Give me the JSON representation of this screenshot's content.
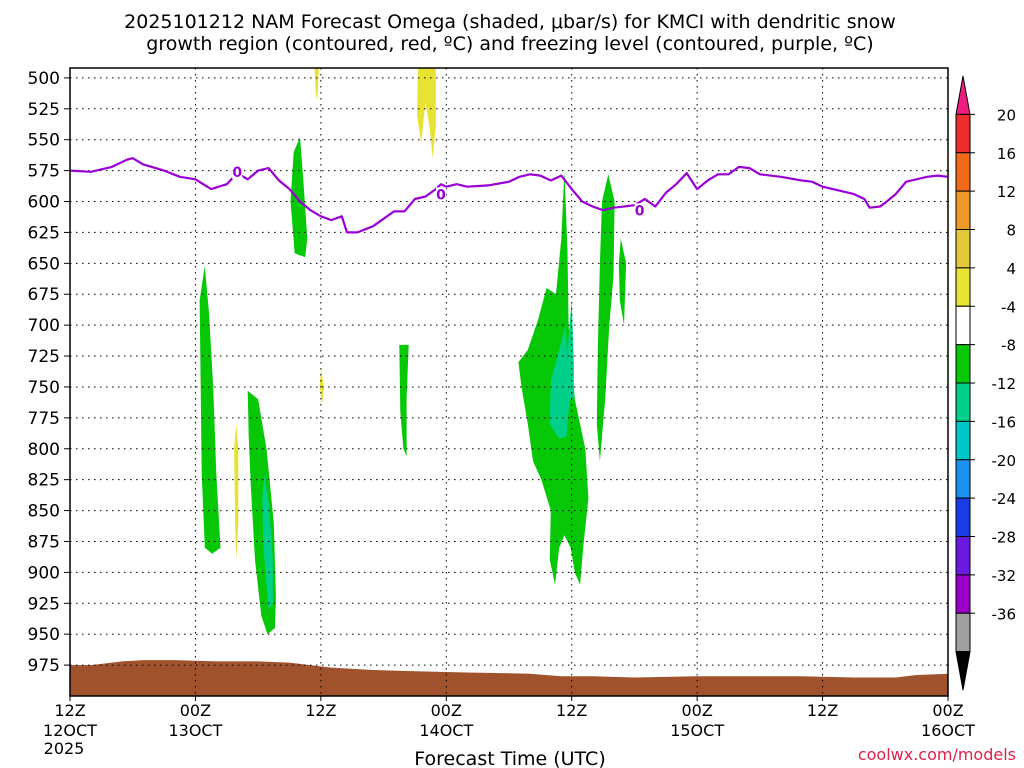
{
  "chart_data": {
    "type": "heatmap",
    "title_line1": "2025101212 NAM Forecast Omega (shaded, μbar/s) for KMCI with dendritic snow",
    "title_line2": "growth region (contoured, red, ºC) and freezing level (contoured, purple, ºC)",
    "xlabel": "Forecast Time (UTC)",
    "credit": "coolwx.com/models",
    "y_axis": {
      "range_hpa": [
        1000,
        492
      ],
      "ticks": [
        500,
        525,
        550,
        575,
        600,
        625,
        650,
        675,
        700,
        725,
        750,
        775,
        800,
        825,
        850,
        875,
        900,
        925,
        950,
        975
      ]
    },
    "x_axis": {
      "range_hours": [
        0,
        84
      ],
      "ticks": [
        {
          "hour": 0,
          "top": "12Z",
          "bottom": "12OCT",
          "extra": "2025"
        },
        {
          "hour": 12,
          "top": "00Z",
          "bottom": "13OCT",
          "extra": ""
        },
        {
          "hour": 24,
          "top": "12Z",
          "bottom": "",
          "extra": ""
        },
        {
          "hour": 36,
          "top": "00Z",
          "bottom": "14OCT",
          "extra": ""
        },
        {
          "hour": 48,
          "top": "12Z",
          "bottom": "",
          "extra": ""
        },
        {
          "hour": 60,
          "top": "00Z",
          "bottom": "15OCT",
          "extra": ""
        },
        {
          "hour": 72,
          "top": "12Z",
          "bottom": "",
          "extra": ""
        },
        {
          "hour": 84,
          "top": "00Z",
          "bottom": "16OCT",
          "extra": ""
        }
      ]
    },
    "grid": true,
    "colorbar": {
      "labels": [
        20,
        16,
        12,
        8,
        4,
        -4,
        -8,
        -12,
        -16,
        -20,
        -24,
        -28,
        -32,
        -36
      ],
      "colors": [
        "#ee1c83",
        "#ee2c2c",
        "#f06a1a",
        "#eb9a28",
        "#e3c83a",
        "#e8e232",
        "#ffffff",
        "#06c806",
        "#00d08a",
        "#00c8c8",
        "#1a90f0",
        "#1a3ce6",
        "#6a1ae0",
        "#9a00c8",
        "#a0a0a0",
        "#000000"
      ]
    },
    "freezing_level": {
      "label": "0",
      "color": "#9a00d6",
      "points": [
        [
          0,
          575
        ],
        [
          2,
          576
        ],
        [
          4,
          572
        ],
        [
          5.5,
          566
        ],
        [
          6,
          565
        ],
        [
          7,
          570
        ],
        [
          9,
          575
        ],
        [
          10.5,
          580
        ],
        [
          12,
          582
        ],
        [
          13.5,
          590
        ],
        [
          15,
          586
        ],
        [
          16,
          577
        ],
        [
          17,
          582
        ],
        [
          18,
          575
        ],
        [
          19,
          573
        ],
        [
          20,
          583
        ],
        [
          21,
          590
        ],
        [
          22,
          600
        ],
        [
          23,
          607
        ],
        [
          24,
          612
        ],
        [
          25,
          615
        ],
        [
          26,
          612
        ],
        [
          26.5,
          625
        ],
        [
          27.5,
          625
        ],
        [
          29,
          620
        ],
        [
          31,
          608
        ],
        [
          32,
          608
        ],
        [
          33,
          598
        ],
        [
          34,
          596
        ],
        [
          35,
          590
        ],
        [
          35.5,
          586
        ],
        [
          36,
          588
        ],
        [
          37,
          586
        ],
        [
          38,
          588
        ],
        [
          40,
          587
        ],
        [
          42,
          584
        ],
        [
          43,
          580
        ],
        [
          44,
          578
        ],
        [
          45,
          579
        ],
        [
          46,
          583
        ],
        [
          47,
          579
        ],
        [
          48,
          590
        ],
        [
          49,
          600
        ],
        [
          50,
          604
        ],
        [
          51,
          607
        ],
        [
          52,
          605
        ],
        [
          53,
          604
        ],
        [
          54,
          603
        ],
        [
          55,
          598
        ],
        [
          56,
          604
        ],
        [
          57,
          593
        ],
        [
          58,
          586
        ],
        [
          59,
          577
        ],
        [
          60,
          590
        ],
        [
          61,
          583
        ],
        [
          62,
          578
        ],
        [
          63,
          578
        ],
        [
          64,
          572
        ],
        [
          65,
          573
        ],
        [
          66,
          578
        ],
        [
          68,
          580
        ],
        [
          70,
          583
        ],
        [
          71,
          584
        ],
        [
          72,
          588
        ],
        [
          74,
          592
        ],
        [
          75,
          594
        ],
        [
          76,
          598
        ],
        [
          76.5,
          605
        ],
        [
          77.5,
          604
        ],
        [
          78,
          601
        ],
        [
          79,
          594
        ],
        [
          80,
          584
        ],
        [
          81,
          582
        ],
        [
          82,
          580
        ],
        [
          83,
          579
        ],
        [
          84,
          580
        ]
      ],
      "contour_labels": [
        [
          16,
          577
        ],
        [
          35.5,
          595
        ],
        [
          54.5,
          608
        ]
      ]
    },
    "omega_regions": [
      {
        "level": "-4 to -8",
        "color": "#06c806",
        "points": [
          [
            12.9,
            652
          ],
          [
            13.3,
            690
          ],
          [
            13.7,
            750
          ],
          [
            14.0,
            820
          ],
          [
            14.4,
            880
          ],
          [
            13.6,
            885
          ],
          [
            12.9,
            880
          ],
          [
            12.6,
            820
          ],
          [
            12.5,
            750
          ],
          [
            12.4,
            680
          ]
        ]
      },
      {
        "level": "-4 to -8",
        "color": "#06c806",
        "points": [
          [
            17.0,
            753
          ],
          [
            18.0,
            760
          ],
          [
            18.8,
            800
          ],
          [
            19.5,
            860
          ],
          [
            19.7,
            920
          ],
          [
            19.6,
            945
          ],
          [
            18.9,
            950
          ],
          [
            18.3,
            935
          ],
          [
            17.7,
            890
          ],
          [
            17.3,
            830
          ],
          [
            17.1,
            790
          ]
        ]
      },
      {
        "level": "-8 to -12",
        "color": "#00d08a",
        "points": [
          [
            18.6,
            820
          ],
          [
            19.1,
            850
          ],
          [
            19.4,
            890
          ],
          [
            19.4,
            925
          ],
          [
            19.0,
            930
          ],
          [
            18.5,
            880
          ],
          [
            18.4,
            840
          ]
        ]
      },
      {
        "level": "-4 to -8",
        "color": "#06c806",
        "points": [
          [
            22.0,
            548
          ],
          [
            22.3,
            580
          ],
          [
            22.7,
            630
          ],
          [
            22.5,
            645
          ],
          [
            21.5,
            642
          ],
          [
            21.1,
            600
          ],
          [
            21.4,
            560
          ]
        ]
      },
      {
        "level": "-4 to -8",
        "color": "#06c806",
        "points": [
          [
            31.5,
            716
          ],
          [
            32.4,
            716
          ],
          [
            32.2,
            760
          ],
          [
            32.2,
            806
          ],
          [
            31.9,
            800
          ],
          [
            31.6,
            770
          ]
        ]
      },
      {
        "level": "-4 to -8",
        "color": "#06c806",
        "points": [
          [
            42.9,
            730
          ],
          [
            43.8,
            720
          ],
          [
            44.8,
            695
          ],
          [
            45.6,
            670
          ],
          [
            46.5,
            675
          ],
          [
            47.0,
            630
          ],
          [
            47.3,
            575
          ],
          [
            47.6,
            640
          ],
          [
            47.7,
            700
          ],
          [
            48.3,
            760
          ],
          [
            49.3,
            800
          ],
          [
            49.6,
            840
          ],
          [
            49.1,
            880
          ],
          [
            48.8,
            910
          ],
          [
            48.3,
            900
          ],
          [
            47.9,
            880
          ],
          [
            47.3,
            870
          ],
          [
            46.8,
            880
          ],
          [
            46.4,
            910
          ],
          [
            45.9,
            890
          ],
          [
            46.0,
            850
          ],
          [
            45.1,
            825
          ],
          [
            44.3,
            810
          ],
          [
            43.8,
            780
          ],
          [
            43.2,
            750
          ]
        ]
      },
      {
        "level": "-8 to -12",
        "color": "#00d08a",
        "points": [
          [
            46.8,
            720
          ],
          [
            47.4,
            700
          ],
          [
            47.8,
            760
          ],
          [
            47.5,
            790
          ],
          [
            46.8,
            792
          ],
          [
            45.9,
            780
          ],
          [
            46.0,
            745
          ]
        ]
      },
      {
        "level": "-8 to -12",
        "color": "#00d08a",
        "points": [
          [
            47.6,
            720
          ],
          [
            48.0,
            680
          ],
          [
            48.2,
            730
          ],
          [
            48.2,
            760
          ],
          [
            47.7,
            760
          ]
        ]
      },
      {
        "level": "-4 to -8",
        "color": "#06c806",
        "points": [
          [
            51.5,
            578
          ],
          [
            52.1,
            600
          ],
          [
            52.0,
            660
          ],
          [
            51.6,
            700
          ],
          [
            51.2,
            760
          ],
          [
            50.7,
            810
          ],
          [
            50.4,
            780
          ],
          [
            50.5,
            720
          ],
          [
            50.7,
            650
          ],
          [
            50.9,
            600
          ]
        ]
      },
      {
        "level": "-4 to -8",
        "color": "#06c806",
        "points": [
          [
            52.7,
            630
          ],
          [
            53.2,
            650
          ],
          [
            53.0,
            700
          ],
          [
            52.6,
            680
          ],
          [
            52.5,
            650
          ]
        ]
      },
      {
        "level": "4 to 8",
        "color": "#e8e232",
        "points": [
          [
            33.3,
            492
          ],
          [
            35.0,
            492
          ],
          [
            35.0,
            540
          ],
          [
            34.7,
            565
          ],
          [
            34.4,
            540
          ],
          [
            34.0,
            520
          ],
          [
            33.6,
            553
          ],
          [
            33.2,
            530
          ]
        ]
      },
      {
        "level": "4 to 8",
        "color": "#e8e232",
        "points": [
          [
            23.4,
            492
          ],
          [
            23.8,
            492
          ],
          [
            23.7,
            513
          ],
          [
            23.6,
            518
          ],
          [
            23.5,
            510
          ]
        ]
      },
      {
        "level": "4 to 8",
        "color": "#e8e232",
        "points": [
          [
            15.9,
            780
          ],
          [
            16.1,
            800
          ],
          [
            16.1,
            860
          ],
          [
            15.9,
            890
          ],
          [
            15.8,
            860
          ],
          [
            15.7,
            800
          ]
        ]
      },
      {
        "level": "4 to 8",
        "color": "#e8e232",
        "points": [
          [
            24.0,
            735
          ],
          [
            24.3,
            750
          ],
          [
            24.1,
            765
          ],
          [
            23.9,
            750
          ]
        ]
      }
    ],
    "terrain": {
      "color": "#a0522d",
      "points": [
        [
          0,
          975
        ],
        [
          2,
          975
        ],
        [
          5,
          972
        ],
        [
          7,
          971
        ],
        [
          10,
          971
        ],
        [
          14,
          972
        ],
        [
          18,
          972
        ],
        [
          21,
          973
        ],
        [
          25,
          977
        ],
        [
          29,
          979
        ],
        [
          33,
          980
        ],
        [
          38,
          981
        ],
        [
          44,
          982
        ],
        [
          47,
          984
        ],
        [
          50,
          984
        ],
        [
          54,
          985
        ],
        [
          60,
          984
        ],
        [
          64,
          984
        ],
        [
          70,
          984
        ],
        [
          75,
          985
        ],
        [
          79,
          985
        ],
        [
          81,
          983
        ],
        [
          84,
          982
        ]
      ]
    }
  }
}
